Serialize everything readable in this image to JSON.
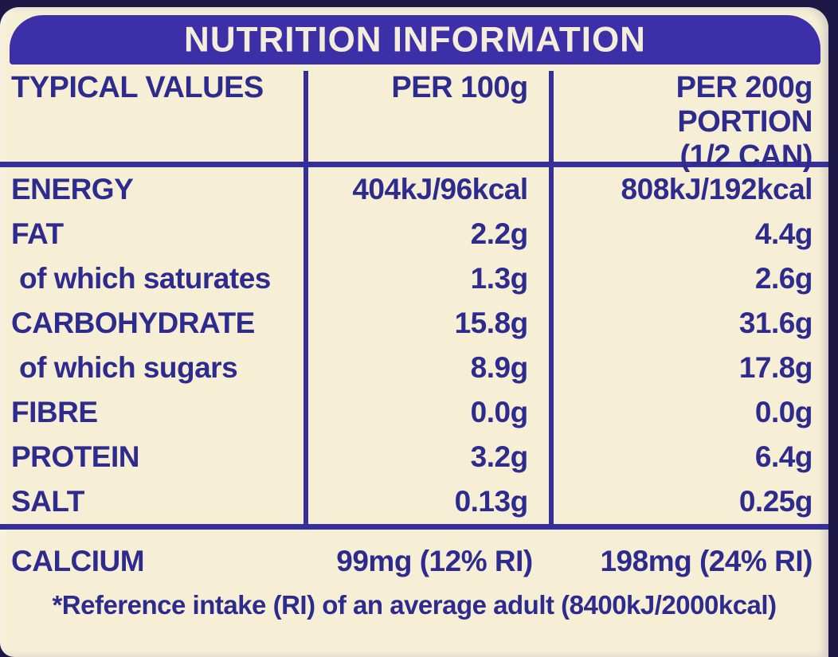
{
  "colors": {
    "background_photo": "#1e1847",
    "label_cream": "#f6efd5",
    "header_bar_blue": "#3c2fa8",
    "text_blue": "#2e2b8e",
    "line_blue": "#342f9b",
    "header_text": "#f3edda"
  },
  "title": "NUTRITION INFORMATION",
  "table": {
    "columns": [
      "TYPICAL VALUES",
      "PER 100g",
      "PER 200g PORTION",
      "(1/2 CAN)"
    ],
    "rows": [
      {
        "label": "ENERGY",
        "per100": "404kJ/96kcal",
        "per200": "808kJ/192kcal"
      },
      {
        "label": "FAT",
        "per100": "2.2g",
        "per200": "4.4g"
      },
      {
        "label": "of which saturates",
        "per100": "1.3g",
        "per200": "2.6g"
      },
      {
        "label": "CARBOHYDRATE",
        "per100": "15.8g",
        "per200": "31.6g"
      },
      {
        "label": "of which sugars",
        "per100": "8.9g",
        "per200": "17.8g"
      },
      {
        "label": "FIBRE",
        "per100": "0.0g",
        "per200": "0.0g"
      },
      {
        "label": "PROTEIN",
        "per100": "3.2g",
        "per200": "6.4g"
      },
      {
        "label": "SALT",
        "per100": "0.13g",
        "per200": "0.25g"
      }
    ],
    "calcium": {
      "label": "CALCIUM",
      "per100": "99mg (12% RI)",
      "per200": "198mg (24% RI)"
    }
  },
  "footnote": "*Reference intake (RI) of an average adult (8400kJ/2000kcal)"
}
